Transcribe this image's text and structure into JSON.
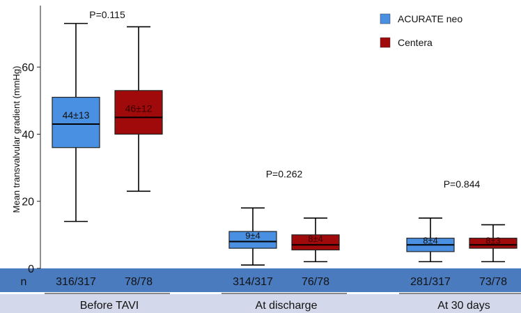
{
  "chart_data": {
    "type": "box",
    "ylabel": "Mean transvalvular gradient (mmHg)",
    "ylim": [
      0,
      75
    ],
    "yticks": [
      0,
      20,
      40,
      60
    ],
    "grid": false,
    "legend_position": "top-right",
    "series": [
      {
        "name": "ACURATE neo",
        "color": "#4a90e2"
      },
      {
        "name": "Centera",
        "color": "#a00a0a"
      }
    ],
    "groups": [
      {
        "label": "Before TAVI",
        "p_value": "P=0.115",
        "boxes": [
          {
            "series": "ACURATE neo",
            "min": 14,
            "q1": 36,
            "median": 43,
            "q3": 51,
            "max": 73,
            "label": "44±13",
            "n": "316/317"
          },
          {
            "series": "Centera",
            "min": 23,
            "q1": 40,
            "median": 45,
            "q3": 53,
            "max": 72,
            "label": "46±12",
            "n": "78/78"
          }
        ]
      },
      {
        "label": "At discharge",
        "p_value": "P=0.262",
        "boxes": [
          {
            "series": "ACURATE neo",
            "min": 1,
            "q1": 6,
            "median": 8,
            "q3": 11,
            "max": 18,
            "label": "9±4",
            "n": "314/317"
          },
          {
            "series": "Centera",
            "min": 2,
            "q1": 5.5,
            "median": 7,
            "q3": 10,
            "max": 15,
            "label": "8±4",
            "n": "76/78"
          }
        ]
      },
      {
        "label": "At 30 days",
        "p_value": "P=0.844",
        "boxes": [
          {
            "series": "ACURATE neo",
            "min": 2,
            "q1": 5,
            "median": 7,
            "q3": 9,
            "max": 15,
            "label": "8±4",
            "n": "281/317"
          },
          {
            "series": "Centera",
            "min": 2,
            "q1": 6,
            "median": 7,
            "q3": 9,
            "max": 13,
            "label": "8±3",
            "n": "73/78"
          }
        ]
      }
    ],
    "n_row_label": "n"
  },
  "colors": {
    "n_row_band": "#4a7bbf",
    "group_band": "#d3d9ea"
  }
}
